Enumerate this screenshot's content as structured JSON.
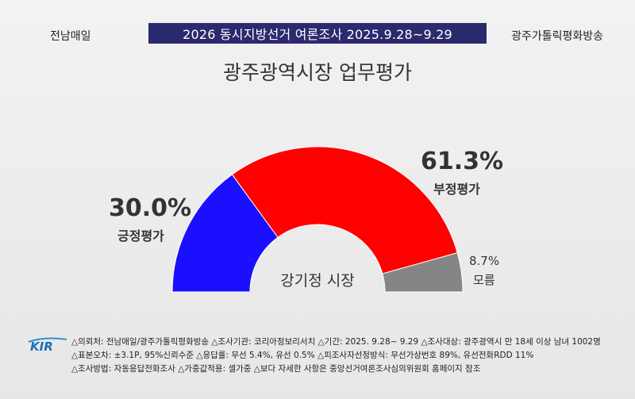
{
  "header": {
    "left": "전남매일",
    "banner": "2026 동시지방선거 여론조사 2025.9.28~9.29",
    "right": "광주가톨릭평화방송"
  },
  "chart_data": {
    "type": "pie",
    "title": "광주광역시장 업무평가",
    "center_label": "강기정 시장",
    "series": [
      {
        "name": "긍정평가",
        "value": 30.0,
        "label": "30.0%",
        "color": "#1a10ff"
      },
      {
        "name": "부정평가",
        "value": 61.3,
        "label": "61.3%",
        "color": "#ff0000"
      },
      {
        "name": "모름",
        "value": 8.7,
        "label": "8.7%",
        "color": "#858585"
      }
    ]
  },
  "footer": {
    "logo_text": "KIR",
    "lines": [
      "△의뢰처: 전남매일/광주가톨릭평화방송 △조사기관: 코리아정보리서치 △기간: 2025. 9.28~ 9.29 △조사대상: 광주광역시 만 18세 이상 남녀 1002명",
      "△표본오차: ±3.1P, 95%신뢰수준 △응답률: 무선 5.4%, 유선 0.5% △피조사자선정방식: 무선가상번호 89%, 유선전화RDD 11%",
      "△조사방법: 자동응답전화조사 △가중값적용: 셀가중 △보다 자세한 사항은 중앙선거여론조사심의위원회 홈페이지 참조"
    ]
  }
}
